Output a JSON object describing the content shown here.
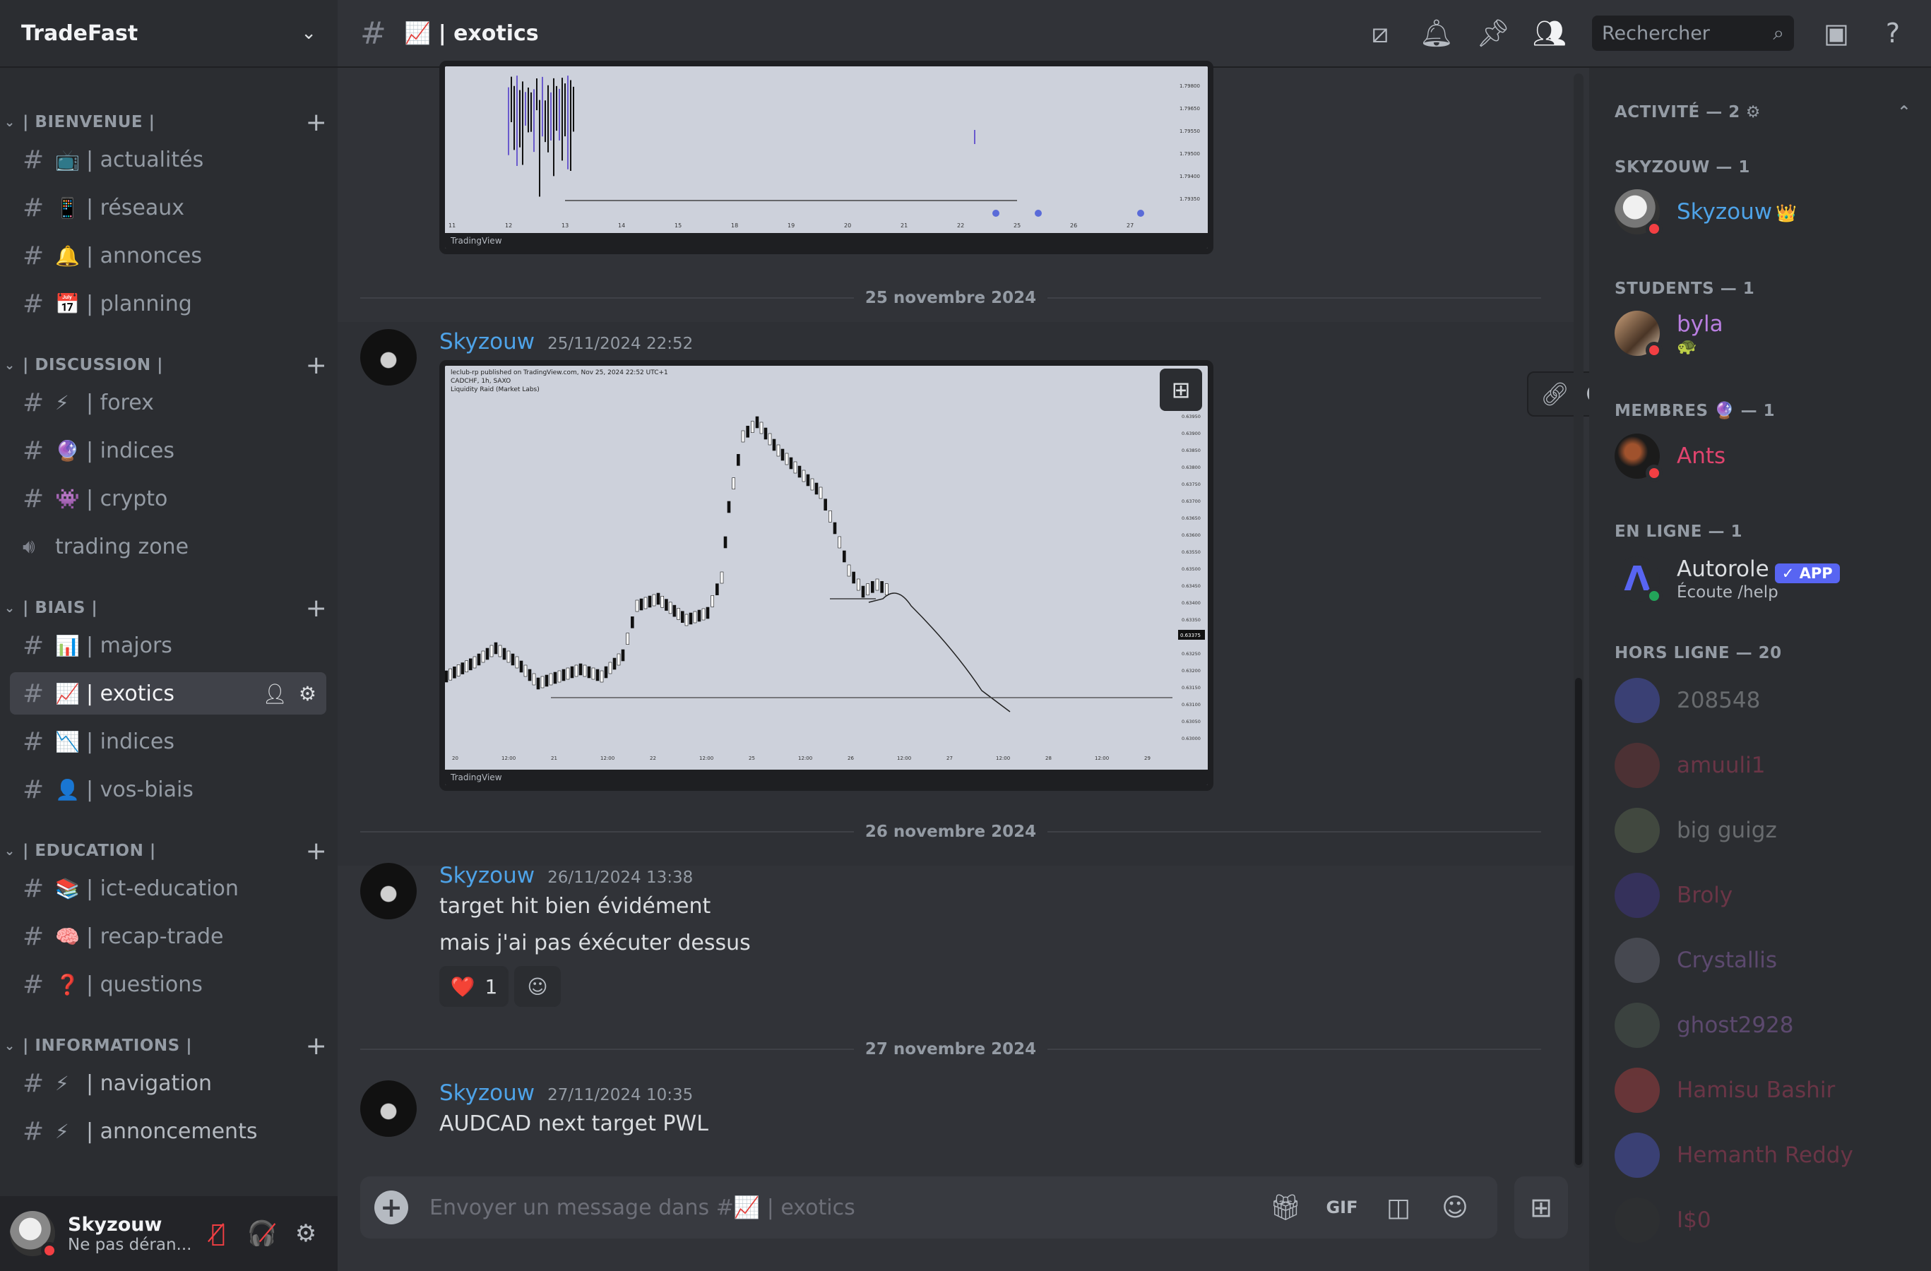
{
  "server": {
    "name": "TradeFast"
  },
  "categories": [
    {
      "name": "| BIENVENUE |",
      "channels": [
        {
          "emoji": "📺",
          "name": "| actualités"
        },
        {
          "emoji": "📱",
          "name": "| réseaux"
        },
        {
          "emoji": "🔔",
          "name": "| annonces"
        },
        {
          "emoji": "📅",
          "name": "| planning"
        }
      ]
    },
    {
      "name": "| DISCUSSION |",
      "channels": [
        {
          "emoji": "⚡",
          "name": "| forex"
        },
        {
          "emoji": "🔮",
          "name": "| indices"
        },
        {
          "emoji": "👾",
          "name": "| crypto"
        },
        {
          "emoji": "",
          "name": "trading zone",
          "voice": true
        }
      ]
    },
    {
      "name": "| BIAIS |",
      "channels": [
        {
          "emoji": "📊",
          "name": "| majors"
        },
        {
          "emoji": "📈",
          "name": "| exotics",
          "active": true
        },
        {
          "emoji": "📉",
          "name": "| indices"
        },
        {
          "emoji": "👤",
          "name": "| vos-biais"
        }
      ]
    },
    {
      "name": "| EDUCATION |",
      "channels": [
        {
          "emoji": "📚",
          "name": "| ict-education"
        },
        {
          "emoji": "🧠",
          "name": "| recap-trade"
        },
        {
          "emoji": "❓",
          "name": "| questions"
        }
      ]
    },
    {
      "name": "| INFORMATIONS |",
      "channels": [
        {
          "emoji": "⚡",
          "name": "| navigation"
        },
        {
          "emoji": "⚡",
          "name": "| annoncements"
        }
      ]
    }
  ],
  "user": {
    "name": "Skyzouw",
    "status": "Ne pas déran..."
  },
  "header": {
    "channel_emoji": "📈",
    "channel_name": "| exotics",
    "search_placeholder": "Rechercher"
  },
  "dividers": [
    "25 novembre 2024",
    "26 novembre 2024",
    "27 novembre 2024"
  ],
  "messages": [
    {
      "author": "Skyzouw",
      "time": "25/11/2024 22:52",
      "lines": []
    },
    {
      "author": "Skyzouw",
      "time": "26/11/2024 13:38",
      "lines": [
        "target hit bien évidément",
        "mais j'ai pas éxécuter dessus"
      ]
    },
    {
      "author": "Skyzouw",
      "time": "27/11/2024 10:35",
      "lines": [
        "AUDCAD next target PWL"
      ]
    }
  ],
  "embed": {
    "caption1": "leclub-rp published on TradingView.com, Nov 25, 2024 22:52 UTC+1",
    "caption2": "CADCHF, 1h, SAXO",
    "caption3": "Liquidity Raid (Market Labs)",
    "footer": "TradingView",
    "top_x_labels": [
      "11",
      "12",
      "13",
      "14",
      "15",
      "18",
      "19",
      "20",
      "21",
      "22",
      "25",
      "26",
      "27"
    ],
    "top_y_labels": [
      "1.79800",
      "1.79650",
      "1.79550",
      "1.79500",
      "1.79400",
      "1.79350"
    ],
    "main_x_labels": [
      "20",
      "12:00",
      "21",
      "12:00",
      "22",
      "12:00",
      "25",
      "12:00",
      "26",
      "12:00",
      "27",
      "12:00",
      "28",
      "12:00",
      "29"
    ],
    "main_y_labels": [
      "0.63950",
      "0.63900",
      "0.63850",
      "0.63800",
      "0.63750",
      "0.63700",
      "0.63650",
      "0.63600",
      "0.63550",
      "0.63500",
      "0.63450",
      "0.63400",
      "0.63350",
      "0.63300",
      "0.63250",
      "0.63200",
      "0.63150",
      "0.63100",
      "0.63050",
      "0.63000"
    ],
    "price_tag": "0.63375"
  },
  "reaction": {
    "emoji": "❤️",
    "count": "1"
  },
  "composer": {
    "placeholder": "Envoyer un message dans #📈 | exotics"
  },
  "members": {
    "activity_header": "ACTIVITÉ — 2",
    "groups": [
      {
        "title": "SKYZOUW — 1",
        "members": [
          {
            "name": "Skyzouw",
            "badge": "👑",
            "color": "#4ea3e8"
          }
        ]
      },
      {
        "title": "STUDENTS — 1",
        "members": [
          {
            "name": "byla",
            "sub": "🐢",
            "color": "#b97ee0"
          }
        ]
      },
      {
        "title": "MEMBRES 🔮 — 1",
        "members": [
          {
            "name": "Ants",
            "color": "#e0446e"
          }
        ]
      },
      {
        "title": "EN LIGNE — 1",
        "members": [
          {
            "name": "Autorole",
            "app": "✓ APP",
            "sub": "Écoute /help",
            "color": "#dbdee1"
          }
        ]
      },
      {
        "title": "HORS LIGNE — 20",
        "members": [
          {
            "name": "208548",
            "color": "#dbdee1"
          },
          {
            "name": "amuuli1",
            "color": "#e0446e"
          },
          {
            "name": "big guigz",
            "color": "#dbdee1"
          },
          {
            "name": "Broly",
            "color": "#e0446e"
          },
          {
            "name": "Crystallis",
            "color": "#b97ee0"
          },
          {
            "name": "ghost2928",
            "color": "#b97ee0"
          },
          {
            "name": "Hamisu Bashir",
            "color": "#e0446e"
          },
          {
            "name": "Hemanth Reddy",
            "color": "#e0446e"
          },
          {
            "name": "I$0",
            "color": "#e0446e"
          }
        ]
      }
    ]
  }
}
